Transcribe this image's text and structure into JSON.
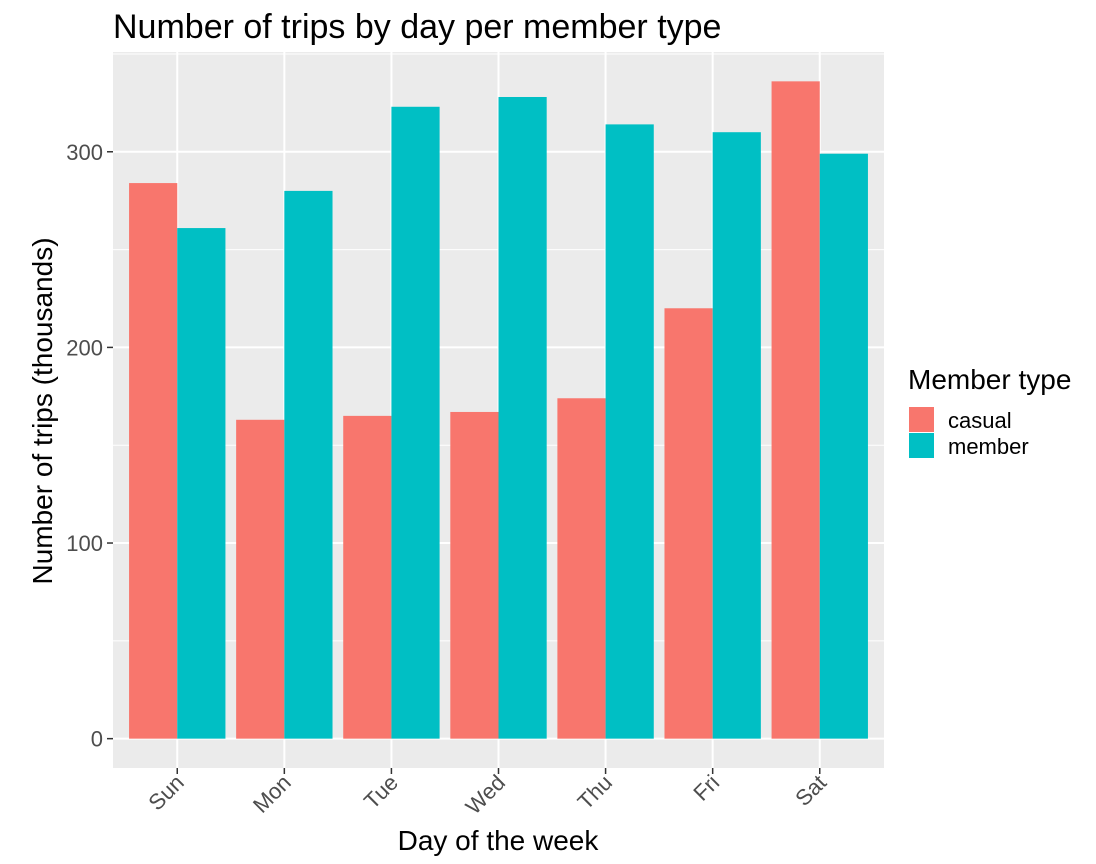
{
  "chart_data": {
    "type": "bar",
    "title": "Number of trips by day per member type",
    "xlabel": "Day of the week",
    "ylabel": "Number of trips (thousands)",
    "categories": [
      "Sun",
      "Mon",
      "Tue",
      "Wed",
      "Thu",
      "Fri",
      "Sat"
    ],
    "series": [
      {
        "name": "casual",
        "color": "#F8766D",
        "values": [
          284,
          163,
          165,
          167,
          174,
          220,
          336
        ]
      },
      {
        "name": "member",
        "color": "#00BFC4",
        "values": [
          261,
          280,
          323,
          328,
          314,
          310,
          299
        ]
      }
    ],
    "ylim": [
      -15,
      351
    ],
    "yticks": [
      0,
      100,
      200,
      300
    ],
    "ytick_labels": [
      "0",
      "100",
      "200",
      "300"
    ],
    "grid": true,
    "legend": {
      "title": "Member type",
      "position": "right"
    },
    "panel_background": "#EBEBEB",
    "grid_color": "#FFFFFF"
  }
}
